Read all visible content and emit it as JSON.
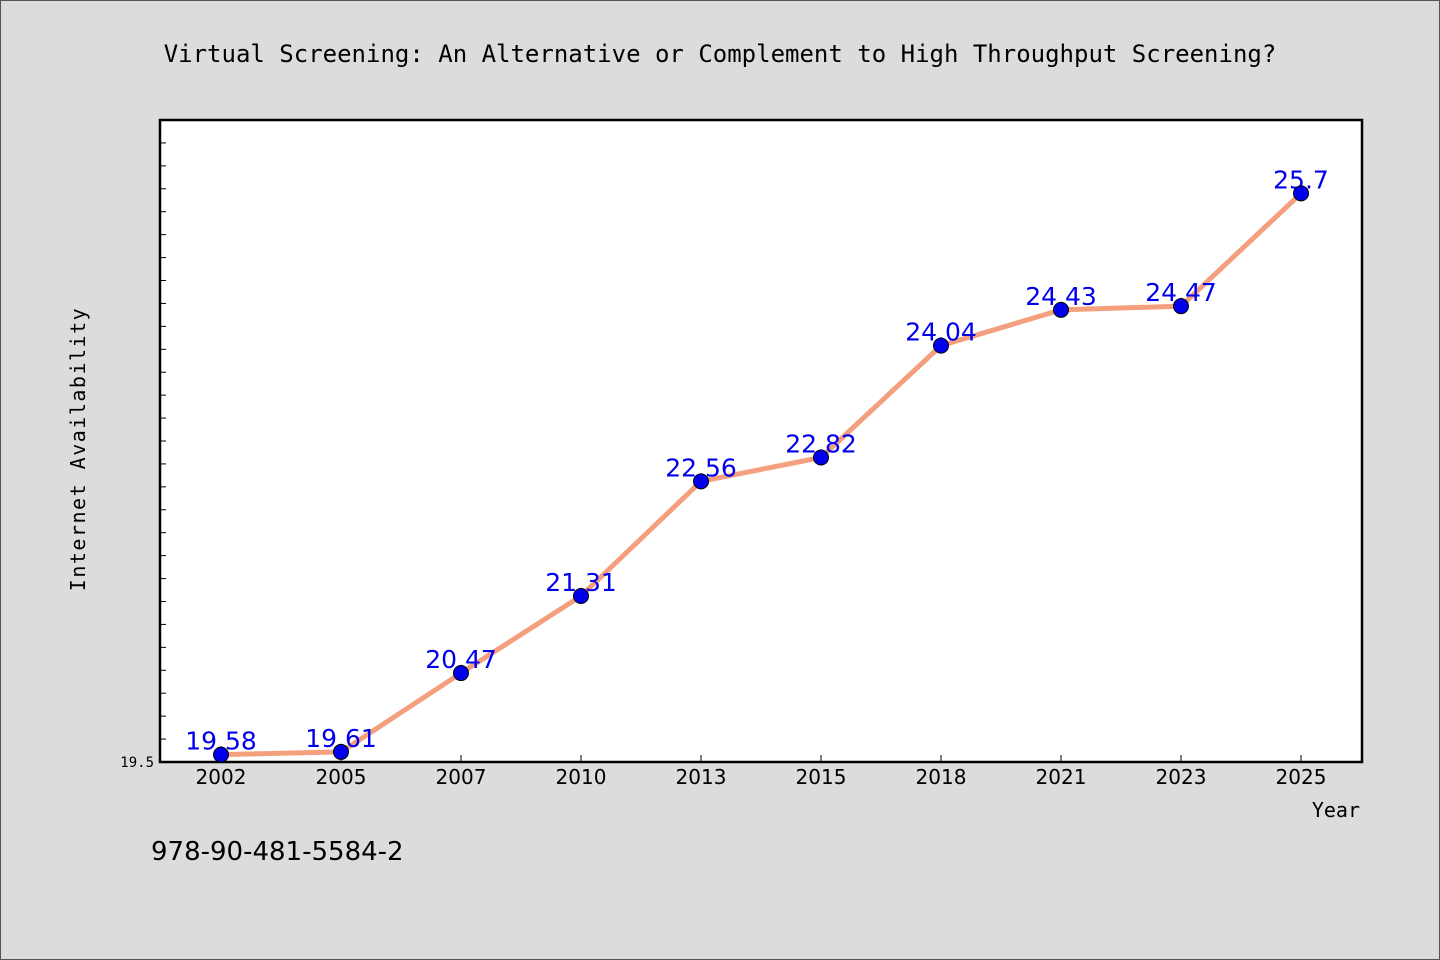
{
  "chart_data": {
    "type": "line",
    "title": "Virtual Screening: An Alternative or Complement to High Throughput Screening?",
    "xlabel": "Year",
    "ylabel": "Internet Availability",
    "categories": [
      "2002",
      "2005",
      "2007",
      "2010",
      "2013",
      "2015",
      "2018",
      "2021",
      "2023",
      "2025"
    ],
    "series": [
      {
        "values": [
          19.58,
          19.61,
          20.47,
          21.31,
          22.56,
          22.82,
          24.04,
          24.43,
          24.47,
          25.7
        ],
        "labels": [
          "19.58",
          "19.61",
          "20.47",
          "21.31",
          "22.56",
          "22.82",
          "24.04",
          "24.43",
          "24.47",
          "25.7"
        ],
        "line_color": "#f4a07e",
        "marker_color": "#0000ee"
      }
    ],
    "ylim": [
      19.5,
      26.5
    ],
    "yticks_labeled": [
      "19.5"
    ],
    "grid": false,
    "legend": "none"
  },
  "footer": {
    "isbn": "978-90-481-5584-2"
  },
  "colors": {
    "background": "#dcdcdc",
    "plot_background": "#ffffff",
    "data_label": "#0000ee"
  }
}
